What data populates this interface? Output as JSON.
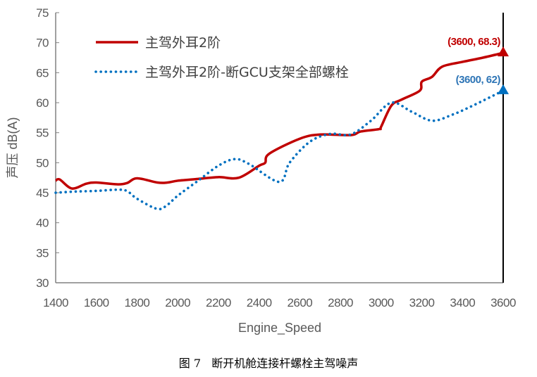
{
  "chart_data": {
    "type": "line",
    "title": "",
    "xlabel": "Engine_Speed",
    "ylabel": "声压 dB(A)",
    "xlim": [
      1400,
      3600
    ],
    "ylim": [
      30,
      75
    ],
    "xticks": [
      1400,
      1600,
      1800,
      2000,
      2200,
      2400,
      2600,
      2800,
      3000,
      3200,
      3400,
      3600
    ],
    "yticks": [
      30,
      35,
      40,
      45,
      50,
      55,
      60,
      65,
      70,
      75
    ],
    "grid": false,
    "legend_position": "top-left",
    "series": [
      {
        "name": "主驾外耳2阶",
        "color": "#C00000",
        "style": "solid",
        "x": [
          1400,
          1420,
          1480,
          1550,
          1600,
          1700,
          1750,
          1800,
          1900,
          1950,
          2000,
          2100,
          2200,
          2300,
          2400,
          2430,
          2450,
          2600,
          2700,
          2850,
          2900,
          2990,
          3000,
          3050,
          3100,
          3190,
          3200,
          3250,
          3300,
          3400,
          3500,
          3600
        ],
        "y": [
          47,
          47.2,
          45.7,
          46.5,
          46.7,
          46.4,
          46.6,
          47.4,
          46.7,
          46.7,
          47,
          47.3,
          47.6,
          47.5,
          49.5,
          50,
          51.5,
          54,
          54.7,
          54.6,
          55.2,
          55.6,
          56,
          59.5,
          60.5,
          62,
          63.5,
          64.3,
          66,
          66.8,
          67.5,
          68.3
        ]
      },
      {
        "name": "主驾外耳2阶-断GCU支架全部螺栓",
        "color": "#0070C0",
        "style": "dotted",
        "x": [
          1400,
          1500,
          1600,
          1700,
          1750,
          1800,
          1900,
          1950,
          2000,
          2100,
          2200,
          2280,
          2350,
          2500,
          2550,
          2650,
          2750,
          2850,
          2950,
          3050,
          3150,
          3250,
          3350,
          3450,
          3600
        ],
        "y": [
          45,
          45.2,
          45.3,
          45.5,
          45.3,
          44,
          42.3,
          43,
          44.5,
          47,
          49.5,
          50.6,
          49.8,
          46.8,
          50,
          53.5,
          54.8,
          54.7,
          57,
          60,
          58.5,
          57,
          58,
          59.5,
          62
        ]
      }
    ],
    "annotations": [
      {
        "text": "(3600, 68.3)",
        "x": 3600,
        "y": 68.3,
        "color": "#C00000"
      },
      {
        "text": "(3600, 62)",
        "x": 3600,
        "y": 62,
        "color": "#2E75B6"
      }
    ]
  },
  "caption": "图 7   断开机舱连接杆螺栓主驾噪声"
}
